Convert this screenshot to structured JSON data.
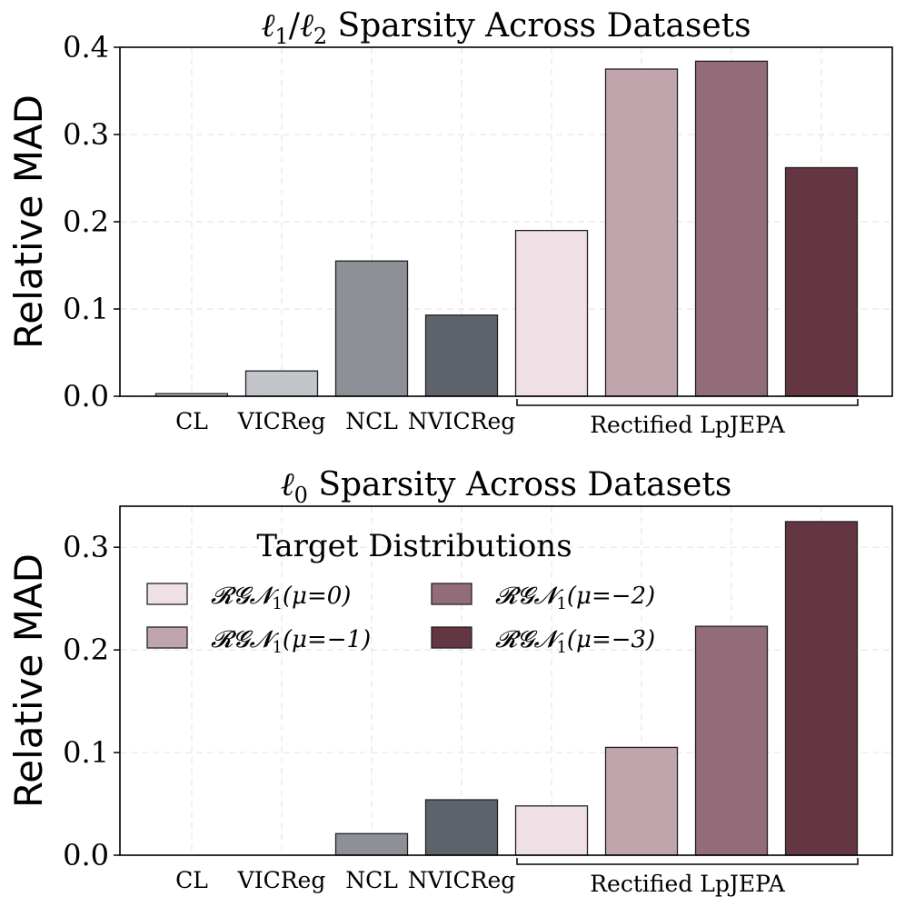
{
  "chart_data": [
    {
      "type": "bar",
      "title": "ℓ1/ℓ2 Sparsity Across Datasets",
      "title_parts": [
        "ℓ",
        "1",
        "/",
        "ℓ",
        "2",
        " Sparsity Across Datasets"
      ],
      "ylabel": "Relative MAD",
      "ylim": [
        0,
        0.4
      ],
      "yticks": [
        0.0,
        0.1,
        0.2,
        0.3,
        0.4
      ],
      "ytick_labels": [
        "0.0",
        "0.1",
        "0.2",
        "0.3",
        "0.4"
      ],
      "grid": true,
      "categories": [
        "CL",
        "VICReg",
        "NCL",
        "NVICReg",
        "",
        "",
        "",
        ""
      ],
      "values": [
        0.003,
        0.029,
        0.155,
        0.093,
        0.19,
        0.375,
        0.384,
        0.262
      ],
      "colors": [
        "#c2c5c9",
        "#c2c5c9",
        "#8d9096",
        "#5e636b",
        "#efe0e5",
        "#c1a5ad",
        "#926c78",
        "#633642"
      ],
      "group_label": "Rectified LpJEPA"
    },
    {
      "type": "bar",
      "title": "ℓ0 Sparsity Across Datasets",
      "title_parts": [
        "ℓ",
        "0",
        "",
        "",
        "",
        " Sparsity Across Datasets"
      ],
      "ylabel": "Relative MAD",
      "ylim": [
        0,
        0.34
      ],
      "yticks": [
        0.0,
        0.1,
        0.2,
        0.3
      ],
      "ytick_labels": [
        "0.0",
        "0.1",
        "0.2",
        "0.3"
      ],
      "grid": true,
      "categories": [
        "CL",
        "VICReg",
        "NCL",
        "NVICReg",
        "",
        "",
        "",
        ""
      ],
      "values": [
        0.0,
        0.0,
        0.021,
        0.054,
        0.048,
        0.105,
        0.223,
        0.325
      ],
      "colors": [
        "#c2c5c9",
        "#c2c5c9",
        "#8d9096",
        "#5e636b",
        "#efe0e5",
        "#c1a5ad",
        "#926c78",
        "#633642"
      ],
      "group_label": "Rectified LpJEPA",
      "legend": {
        "title": "Target Distributions",
        "placement": "upper-left",
        "entries": [
          {
            "label": "𝓡𝓖𝓝1(μ=0)",
            "base": "𝓡𝓖𝓝",
            "sub": "1",
            "rest": "(μ=0)",
            "color": "#efe0e5"
          },
          {
            "label": "𝓡𝓖𝓝1(μ=−2)",
            "base": "𝓡𝓖𝓝",
            "sub": "1",
            "rest": "(μ=−2)",
            "color": "#926c78"
          },
          {
            "label": "𝓡𝓖𝓝1(μ=−1)",
            "base": "𝓡𝓖𝓝",
            "sub": "1",
            "rest": "(μ=−1)",
            "color": "#c1a5ad"
          },
          {
            "label": "𝓡𝓖𝓝1(μ=−3)",
            "base": "𝓡𝓖𝓝",
            "sub": "1",
            "rest": "(μ=−3)",
            "color": "#633642"
          }
        ]
      }
    }
  ]
}
